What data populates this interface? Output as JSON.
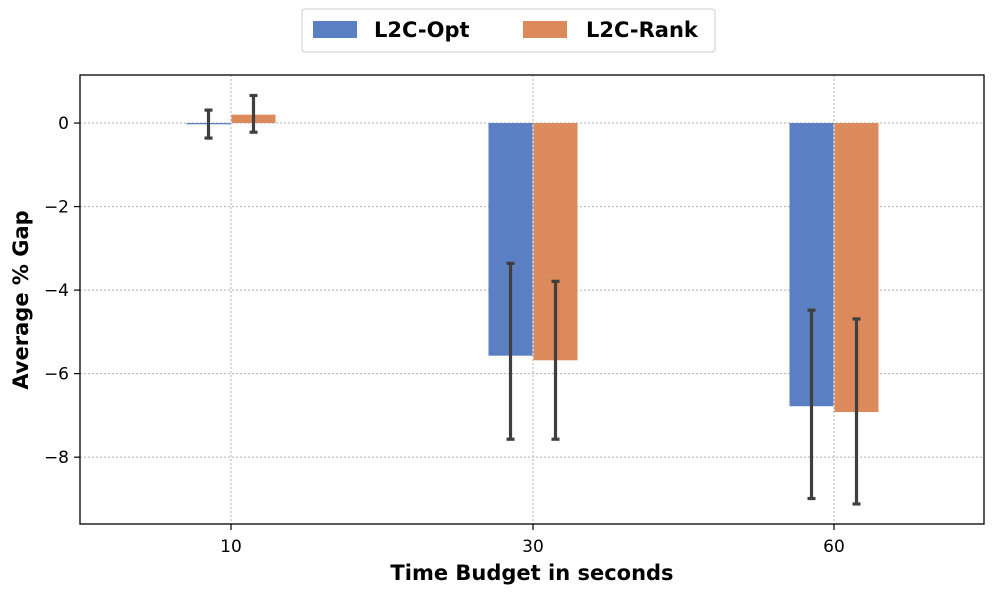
{
  "chart_data": {
    "type": "bar",
    "categories": [
      "10",
      "30",
      "60"
    ],
    "series": [
      {
        "name": "L2C-Opt",
        "color": "#5a7fc2",
        "values": [
          -0.03,
          -5.57,
          -6.78
        ],
        "error_low": [
          -0.36,
          -7.57,
          -8.99
        ],
        "error_high": [
          0.31,
          -3.36,
          -4.48
        ]
      },
      {
        "name": "L2C-Rank",
        "color": "#dc895b",
        "values": [
          0.2,
          -5.68,
          -6.92
        ],
        "error_low": [
          -0.22,
          -7.57,
          -9.12
        ],
        "error_high": [
          0.66,
          -3.79,
          -4.69
        ]
      }
    ],
    "xlabel": "Time Budget in seconds",
    "ylabel": "Average % Gap",
    "ylim": [
      -9.6,
      1.15
    ],
    "yticks": [
      0,
      -2,
      -4,
      -6,
      -8
    ],
    "ytick_labels": [
      "0",
      "−2",
      "−4",
      "−6",
      "−8"
    ],
    "grid": true,
    "legend_position": "top-center",
    "error_bar_color": "#3f3f3f"
  }
}
